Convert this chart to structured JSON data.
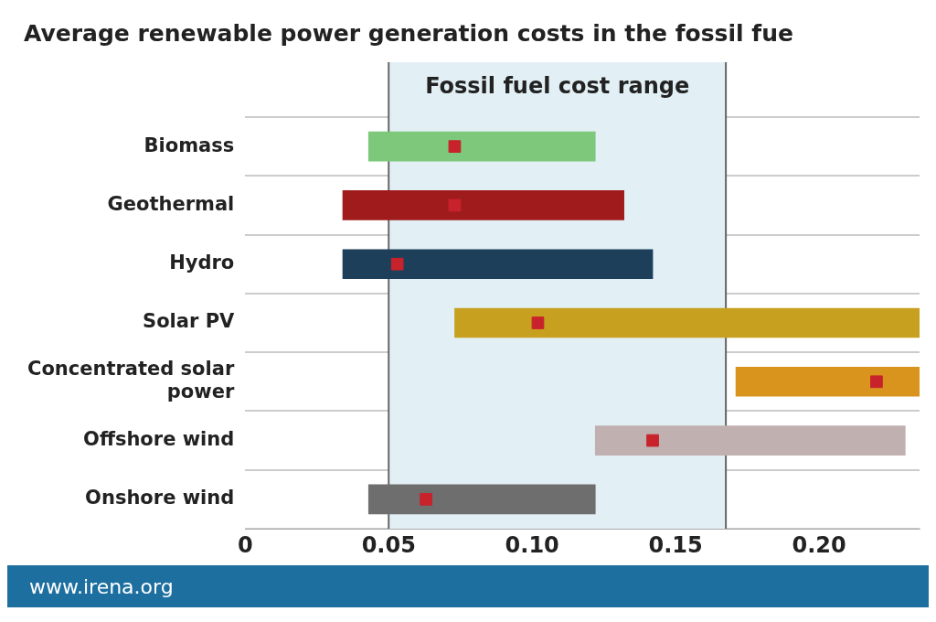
{
  "chart_data": {
    "type": "bar",
    "orientation": "horizontal",
    "title": "Average renewable power generation costs in the fossil fue",
    "categories": [
      "Biomass",
      "Geothermal",
      "Hydro",
      "Solar PV",
      "Concentrated solar power",
      "Offshore wind",
      "Onshore wind"
    ],
    "series": [
      {
        "colors": [
          "#7dc87a",
          "#a01c1c",
          "#1d3f5a",
          "#c8a020",
          "#d8941c",
          "#c0b0b0",
          "#6e6e6e"
        ],
        "base": [
          0.043,
          0.034,
          0.034,
          0.073,
          0.171,
          0.122,
          0.043
        ],
        "values": [
          0.079,
          0.098,
          0.108,
          0.162,
          0.064,
          0.108,
          0.079
        ]
      },
      {
        "type": "scatter",
        "color": "#c8232c",
        "x": [
          "Biomass",
          "Geothermal",
          "Hydro",
          "Solar PV",
          "Concentrated solar power",
          "Offshore wind",
          "Onshore wind"
        ],
        "values": [
          0.073,
          0.073,
          0.053,
          0.102,
          0.22,
          0.142,
          0.063
        ]
      }
    ],
    "xlim": [
      0,
      0.235
    ],
    "xticks": [
      0,
      0.05,
      {
        "value": 0.1,
        "label": "0.10"
      },
      0.15,
      {
        "value": 0.2,
        "label": "0.20"
      }
    ],
    "bands": [
      {
        "axis": "x",
        "from": 0.05,
        "to": 0.1675,
        "label": "Fossil fuel cost range",
        "color": "#e2f0f5"
      }
    ],
    "ref_lines": [
      {
        "axis": "x",
        "value": 0.05,
        "color": "#666666"
      },
      {
        "axis": "x",
        "value": 0.1675,
        "color": "#666666"
      }
    ],
    "grid": "y",
    "marker": "square",
    "legend": false,
    "annotations": [
      "www.irena.org"
    ]
  }
}
